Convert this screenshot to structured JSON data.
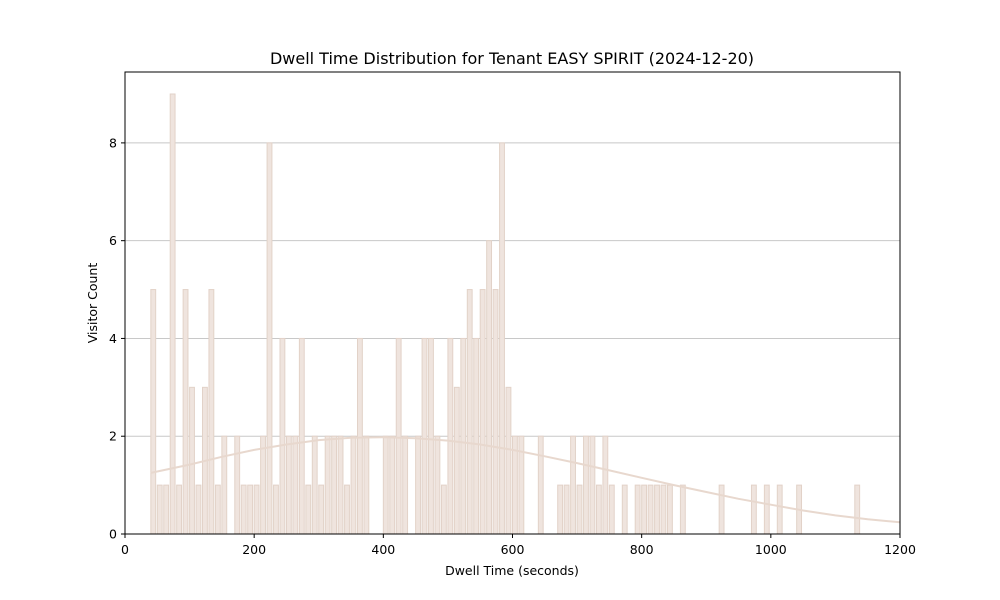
{
  "chart_data": {
    "type": "bar",
    "title": "Dwell Time Distribution for Tenant EASY SPIRIT (2024-12-20)",
    "xlabel": "Dwell Time (seconds)",
    "ylabel": "Visitor Count",
    "xlim": [
      0,
      1200
    ],
    "ylim": [
      0,
      9.45
    ],
    "xticks": [
      0,
      200,
      400,
      600,
      800,
      1000,
      1200
    ],
    "yticks": [
      0,
      2,
      4,
      6,
      8
    ],
    "grid": "y",
    "bar_color": "#efe4de",
    "bar_edge_color": "#e2d2c8",
    "curve_color": "#e8d8ce",
    "bin_width": 10,
    "bins": [
      {
        "x": 40,
        "count": 5
      },
      {
        "x": 50,
        "count": 1
      },
      {
        "x": 60,
        "count": 1
      },
      {
        "x": 70,
        "count": 9
      },
      {
        "x": 80,
        "count": 1
      },
      {
        "x": 90,
        "count": 5
      },
      {
        "x": 100,
        "count": 3
      },
      {
        "x": 110,
        "count": 1
      },
      {
        "x": 120,
        "count": 3
      },
      {
        "x": 130,
        "count": 5
      },
      {
        "x": 140,
        "count": 1
      },
      {
        "x": 150,
        "count": 2
      },
      {
        "x": 170,
        "count": 2
      },
      {
        "x": 180,
        "count": 1
      },
      {
        "x": 190,
        "count": 1
      },
      {
        "x": 200,
        "count": 1
      },
      {
        "x": 210,
        "count": 2
      },
      {
        "x": 220,
        "count": 8
      },
      {
        "x": 230,
        "count": 1
      },
      {
        "x": 240,
        "count": 4
      },
      {
        "x": 250,
        "count": 2
      },
      {
        "x": 260,
        "count": 2
      },
      {
        "x": 270,
        "count": 4
      },
      {
        "x": 280,
        "count": 1
      },
      {
        "x": 290,
        "count": 2
      },
      {
        "x": 300,
        "count": 1
      },
      {
        "x": 310,
        "count": 2
      },
      {
        "x": 320,
        "count": 2
      },
      {
        "x": 330,
        "count": 2
      },
      {
        "x": 340,
        "count": 1
      },
      {
        "x": 350,
        "count": 2
      },
      {
        "x": 360,
        "count": 4
      },
      {
        "x": 370,
        "count": 2
      },
      {
        "x": 400,
        "count": 2
      },
      {
        "x": 410,
        "count": 2
      },
      {
        "x": 420,
        "count": 4
      },
      {
        "x": 430,
        "count": 2
      },
      {
        "x": 450,
        "count": 2
      },
      {
        "x": 460,
        "count": 4
      },
      {
        "x": 470,
        "count": 4
      },
      {
        "x": 480,
        "count": 2
      },
      {
        "x": 490,
        "count": 1
      },
      {
        "x": 500,
        "count": 4
      },
      {
        "x": 510,
        "count": 3
      },
      {
        "x": 520,
        "count": 4
      },
      {
        "x": 530,
        "count": 5
      },
      {
        "x": 540,
        "count": 4
      },
      {
        "x": 550,
        "count": 5
      },
      {
        "x": 560,
        "count": 6
      },
      {
        "x": 570,
        "count": 5
      },
      {
        "x": 580,
        "count": 8
      },
      {
        "x": 590,
        "count": 3
      },
      {
        "x": 600,
        "count": 2
      },
      {
        "x": 610,
        "count": 2
      },
      {
        "x": 640,
        "count": 2
      },
      {
        "x": 670,
        "count": 1
      },
      {
        "x": 680,
        "count": 1
      },
      {
        "x": 690,
        "count": 2
      },
      {
        "x": 700,
        "count": 1
      },
      {
        "x": 710,
        "count": 2
      },
      {
        "x": 720,
        "count": 2
      },
      {
        "x": 730,
        "count": 1
      },
      {
        "x": 740,
        "count": 2
      },
      {
        "x": 750,
        "count": 1
      },
      {
        "x": 770,
        "count": 1
      },
      {
        "x": 790,
        "count": 1
      },
      {
        "x": 800,
        "count": 1
      },
      {
        "x": 810,
        "count": 1
      },
      {
        "x": 820,
        "count": 1
      },
      {
        "x": 830,
        "count": 1
      },
      {
        "x": 840,
        "count": 1
      },
      {
        "x": 860,
        "count": 1
      },
      {
        "x": 920,
        "count": 1
      },
      {
        "x": 970,
        "count": 1
      },
      {
        "x": 990,
        "count": 1
      },
      {
        "x": 1010,
        "count": 1
      },
      {
        "x": 1040,
        "count": 1
      },
      {
        "x": 1130,
        "count": 1
      }
    ],
    "density_curve": {
      "x": [
        40,
        100,
        150,
        200,
        250,
        300,
        350,
        400,
        450,
        500,
        550,
        600,
        650,
        700,
        750,
        800,
        850,
        900,
        950,
        1000,
        1050,
        1100,
        1150,
        1200
      ],
      "y": [
        1.25,
        1.42,
        1.58,
        1.72,
        1.83,
        1.92,
        1.97,
        1.98,
        1.96,
        1.91,
        1.83,
        1.72,
        1.59,
        1.45,
        1.3,
        1.15,
        1.0,
        0.86,
        0.72,
        0.6,
        0.48,
        0.38,
        0.3,
        0.24
      ]
    }
  }
}
